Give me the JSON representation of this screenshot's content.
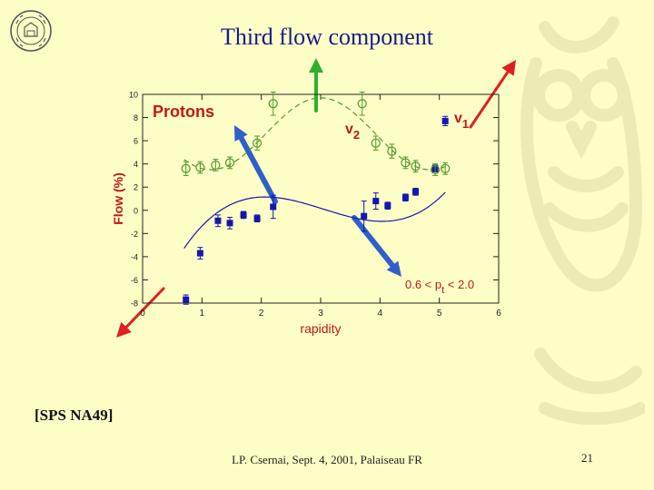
{
  "slide": {
    "title": "Third flow component",
    "source": "[SPS NA49]",
    "footer": "LP. Csernai, Sept. 4, 2001, Palaiseau FR",
    "page_number": "21"
  },
  "colors": {
    "background": "#fdfdc6",
    "title": "#1a1a8c",
    "v1_series": "#1515b0",
    "v2_series": "#4f9a2a",
    "panel_labels": "#c01818",
    "arrow_blue": "#2f5fc8",
    "arrow_red": "#e02020",
    "arrow_green": "#2fb02f"
  },
  "chart_data": {
    "type": "scatter",
    "particle_label": "Protons",
    "cut_label": "0.6 < p",
    "cut_subscript": "t",
    "cut_suffix": " < 2.0",
    "xlabel": "rapidity",
    "ylabel": "Flow (%)",
    "xlim": [
      0,
      6
    ],
    "ylim": [
      -8,
      10
    ],
    "x_ticks": [
      "0",
      "1",
      "2",
      "3",
      "4",
      "5",
      "6"
    ],
    "y_ticks": [
      {
        "v": 10,
        "t": "10"
      },
      {
        "v": 8,
        "t": "8"
      },
      {
        "v": 6,
        "t": "6"
      },
      {
        "v": 4,
        "t": "4"
      },
      {
        "v": 2,
        "t": "2"
      },
      {
        "v": 0,
        "t": "0"
      },
      {
        "v": -2,
        "t": "-2"
      },
      {
        "v": -4,
        "t": "-4"
      },
      {
        "v": -6,
        "t": "-6"
      },
      {
        "v": -8,
        "t": "-8"
      }
    ],
    "series": [
      {
        "name": "v",
        "name_sub": "1",
        "marker": "filled-square",
        "x": [
          0.73,
          0.97,
          1.27,
          1.47,
          1.7,
          1.93,
          2.2,
          3.73,
          3.93,
          4.13,
          4.43,
          4.6,
          4.93,
          5.1
        ],
        "y": [
          -7.7,
          -3.7,
          -0.9,
          -1.1,
          -0.4,
          -0.7,
          0.3,
          -0.5,
          0.8,
          0.4,
          1.1,
          1.6,
          3.6,
          7.7
        ],
        "err": [
          0.4,
          0.5,
          0.5,
          0.5,
          0.3,
          0.3,
          1.0,
          1.3,
          0.7,
          0.3,
          0.3,
          0.3,
          0.3,
          0.4
        ]
      },
      {
        "name": "v",
        "name_sub": "2",
        "marker": "open-circle",
        "x": [
          0.73,
          0.97,
          1.23,
          1.47,
          1.93,
          2.2,
          3.7,
          3.93,
          4.2,
          4.43,
          4.6,
          4.93,
          5.1
        ],
        "y": [
          3.6,
          3.7,
          3.9,
          4.1,
          5.8,
          9.2,
          9.2,
          5.8,
          5.1,
          4.1,
          3.8,
          3.5,
          3.6
        ],
        "err": [
          0.6,
          0.5,
          0.5,
          0.5,
          0.6,
          1.0,
          1.0,
          0.6,
          0.6,
          0.5,
          0.5,
          0.5,
          0.5
        ]
      }
    ]
  }
}
